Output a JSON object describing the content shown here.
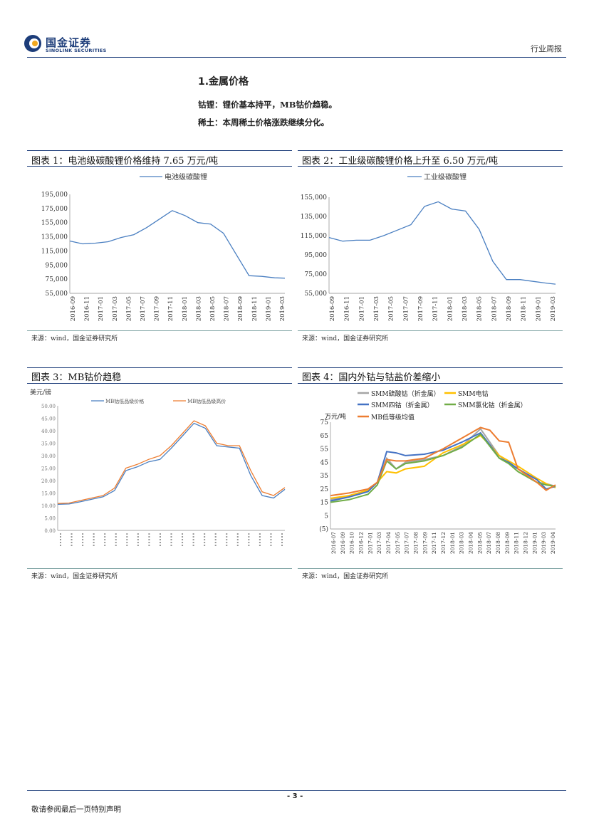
{
  "header": {
    "logo_cn": "国金证券",
    "logo_en": "SINOLINK SECURITIES",
    "tag": "行业周报"
  },
  "section": {
    "title": "1.金属价格",
    "lines": [
      "钴锂：锂价基本持平，MB钴价趋稳。",
      "稀土：本周稀土价格涨跌继续分化。"
    ]
  },
  "colors": {
    "brand": "#1d3d7a",
    "blue": "#4a7fc1",
    "orange": "#ed7d31",
    "gray": "#a5a5a5",
    "yellow": "#ffc000",
    "navy": "#4472c4",
    "green": "#70ad47"
  },
  "charts": [
    {
      "caption": "图表 1：电池级碳酸锂价格维持 7.65 万元/吨",
      "source": "来源：wind，国金证券研究所"
    },
    {
      "caption": "图表 2：工业级碳酸锂价格上升至 6.50 万元/吨",
      "source": "来源：wind，国金证券研究所"
    },
    {
      "caption": "图表 3：MB钴价趋稳",
      "source": "来源：wind，国金证券研究所"
    },
    {
      "caption": "图表 4：国内外钴与钴盐价差缩小",
      "source": "来源：wind，国金证券研究所"
    }
  ],
  "chart_data": [
    {
      "type": "line",
      "title": "",
      "legend": [
        "电池级碳酸锂"
      ],
      "yticks": [
        "195,000",
        "175,000",
        "155,000",
        "135,000",
        "115,000",
        "95,000",
        "75,000",
        "55,000"
      ],
      "ylim": [
        55000,
        195000
      ],
      "xticks": [
        "2016-09",
        "2016-11",
        "2017-01",
        "2017-03",
        "2017-05",
        "2017-07",
        "2017-09",
        "2017-11",
        "2018-01",
        "2018-03",
        "2018-05",
        "2018-07",
        "2018-09",
        "2018-11",
        "2019-01",
        "2019-03"
      ],
      "x": [
        0,
        1,
        2,
        3,
        4,
        5,
        6,
        7,
        8,
        9,
        10,
        11,
        12,
        13,
        14,
        15,
        16,
        16.8
      ],
      "values": [
        129000,
        125000,
        126000,
        128000,
        134000,
        138000,
        148000,
        160000,
        172000,
        165000,
        155000,
        153000,
        140000,
        110000,
        80000,
        79000,
        77000,
        76500
      ]
    },
    {
      "type": "line",
      "title": "",
      "legend": [
        "工业级碳酸锂"
      ],
      "yticks": [
        "155,000",
        "135,000",
        "115,000",
        "95,000",
        "75,000",
        "55,000"
      ],
      "ylim": [
        55000,
        160000
      ],
      "xticks": [
        "2016-09",
        "2016-11",
        "2017-01",
        "2017-03",
        "2017-05",
        "2017-07",
        "2017-09",
        "2017-11",
        "2018-01",
        "2018-03",
        "2018-05",
        "2018-07",
        "2018-09",
        "2018-11",
        "2019-01",
        "2019-03"
      ],
      "x": [
        0,
        1,
        2,
        3,
        4,
        5,
        6,
        7,
        8,
        9,
        10,
        11,
        12,
        13,
        14,
        15,
        16,
        16.6
      ],
      "values": [
        116000,
        112000,
        113000,
        113000,
        118000,
        124000,
        130000,
        150000,
        155000,
        147000,
        145000,
        125000,
        90000,
        70000,
        70000,
        68000,
        66000,
        65000
      ]
    },
    {
      "type": "line",
      "title": "",
      "ylabel": "美元/磅",
      "legend": [
        "MB钴低品级价格",
        "MB钴低品级高价"
      ],
      "yticks": [
        "50.00",
        "45.00",
        "40.00",
        "35.00",
        "30.00",
        "25.00",
        "20.00",
        "15.00",
        "10.00",
        "5.00",
        "0.00"
      ],
      "ylim": [
        0,
        50
      ],
      "x": [
        0,
        1,
        2,
        3,
        4,
        5,
        6,
        7,
        8,
        9,
        10,
        11,
        12,
        13,
        14,
        15,
        16,
        17,
        18,
        19,
        20
      ],
      "series": [
        {
          "name": "MB钴低品级价格",
          "values": [
            10.5,
            10.6,
            11.5,
            12.5,
            13.5,
            16,
            24,
            25.5,
            27.5,
            28.5,
            33,
            38,
            43,
            41,
            34,
            33.5,
            33,
            22,
            14,
            13,
            16.5
          ]
        },
        {
          "name": "MB钴低品级高价",
          "values": [
            10.8,
            11,
            12,
            13,
            14,
            17,
            25,
            26.5,
            28.5,
            30,
            34,
            39,
            44,
            42,
            35,
            34,
            34,
            24,
            15.5,
            14,
            17.2
          ]
        }
      ]
    },
    {
      "type": "line",
      "title": "",
      "ylabel": "万元/吨",
      "legend": [
        "SMM硫酸钴（折金属）",
        "SMM电钴",
        "SMM四钴（折金属）",
        "SMM氯化钴（折金属）",
        "MB低等级均值"
      ],
      "yticks": [
        "75",
        "65",
        "55",
        "45",
        "35",
        "25",
        "15",
        "5",
        "(5)"
      ],
      "ylim": [
        -5,
        75
      ],
      "xticks": [
        "2016-07",
        "2016-09",
        "2016-10",
        "2016-12",
        "2017-01",
        "2017-03",
        "2017-04",
        "2017-05",
        "2017-07",
        "2017-08",
        "2017-09",
        "2017-11",
        "2017-12",
        "2018-01",
        "2018-03",
        "2018-04",
        "2018-05",
        "2018-07",
        "2018-08",
        "2018-09",
        "2018-11",
        "2018-12",
        "2019-01",
        "2019-03",
        "2019-04"
      ],
      "x": [
        0,
        2,
        4,
        5,
        6,
        7,
        8,
        10,
        12,
        14,
        16,
        17,
        18,
        19,
        20,
        22,
        23,
        24
      ],
      "series": [
        {
          "name": "SMM硫酸钴（折金属）",
          "values": [
            17,
            20,
            24,
            30,
            48,
            40,
            45,
            47,
            50,
            57,
            70,
            60,
            50,
            44,
            40,
            30,
            29,
            27
          ]
        },
        {
          "name": "SMM电钴",
          "values": [
            18,
            20,
            24,
            30,
            38,
            37,
            40,
            42,
            52,
            58,
            65,
            58,
            50,
            46,
            42,
            33,
            29,
            26
          ]
        },
        {
          "name": "SMM四钴（折金属）",
          "values": [
            16,
            19,
            23,
            30,
            53,
            52,
            50,
            51,
            54,
            60,
            67,
            58,
            48,
            45,
            40,
            32,
            25,
            27
          ]
        },
        {
          "name": "SMM氯化钴（折金属）",
          "values": [
            15,
            17,
            21,
            28,
            46,
            40,
            44,
            46,
            50,
            56,
            66,
            57,
            48,
            44,
            38,
            30,
            28,
            27
          ]
        },
        {
          "name": "MB低等级均值",
          "values": [
            20,
            22,
            25,
            30,
            47,
            46,
            46,
            48,
            55,
            63,
            71,
            69,
            61,
            60,
            40,
            30,
            24,
            28
          ]
        }
      ]
    }
  ],
  "footer": {
    "page": "- 3 -",
    "note": "敬请参阅最后一页特别声明"
  }
}
